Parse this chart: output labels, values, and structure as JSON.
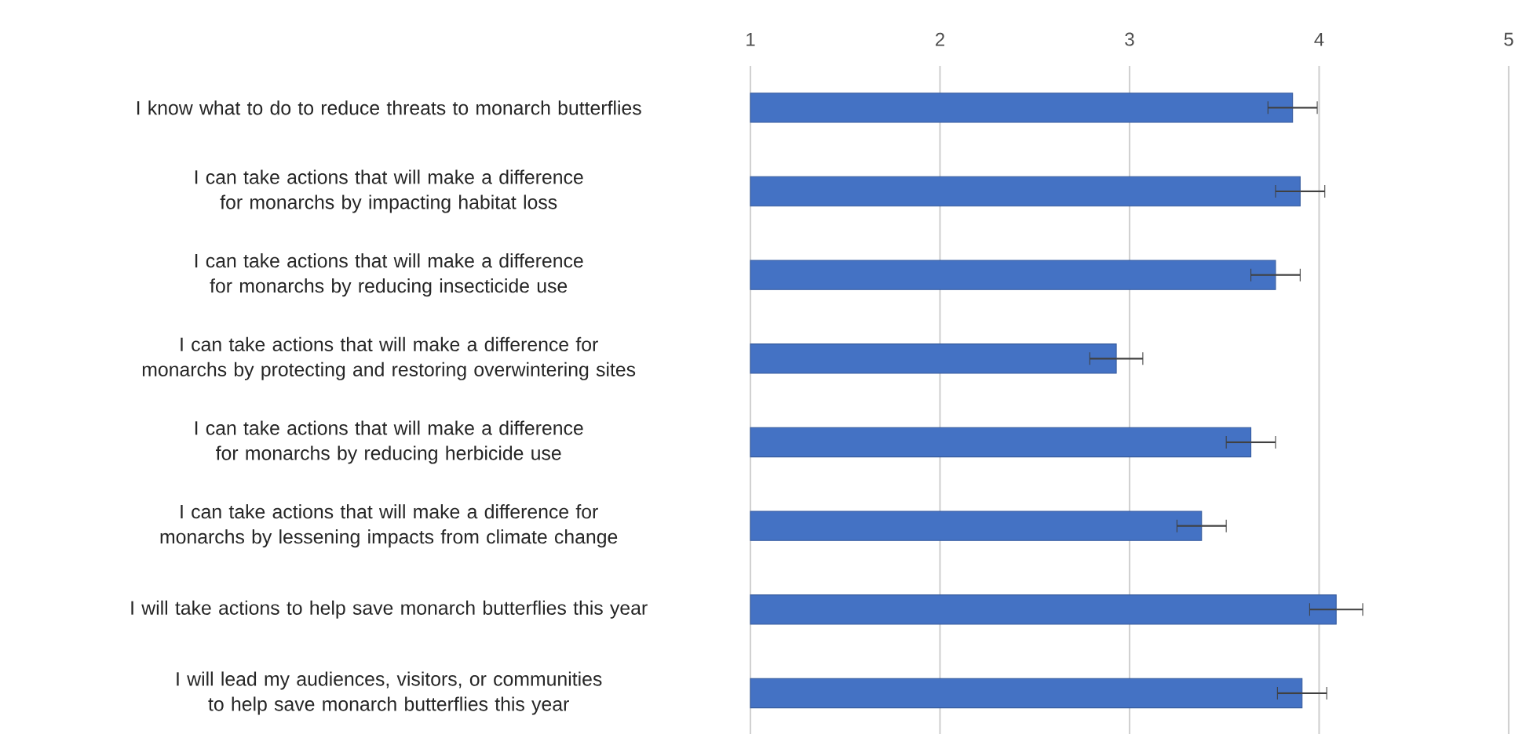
{
  "chart_data": {
    "type": "bar",
    "orientation": "horizontal",
    "categories": [
      "I know what to do to reduce threats to monarch butterflies",
      "I can take actions that will make a difference for monarchs by impacting habitat loss",
      "I can take actions that will make a difference for monarchs by reducing insecticide use",
      "I can take actions that will make a difference for monarchs by protecting and restoring overwintering sites",
      "I can take actions that will make a difference for monarchs by reducing herbicide use",
      "I can take actions that will make a difference for monarchs by lessening impacts from climate change",
      "I will take actions to help save monarch butterflies this year",
      "I will lead my audiences, visitors, or communities to help save monarch butterflies this year"
    ],
    "values": [
      3.86,
      3.9,
      3.77,
      2.93,
      3.64,
      3.38,
      4.09,
      3.91
    ],
    "errors": [
      0.13,
      0.13,
      0.13,
      0.14,
      0.13,
      0.13,
      0.14,
      0.13
    ],
    "color": "#4472c4",
    "xlim": [
      1,
      5
    ],
    "xticks": [
      1,
      2,
      3,
      4,
      5
    ],
    "grid": "x"
  }
}
